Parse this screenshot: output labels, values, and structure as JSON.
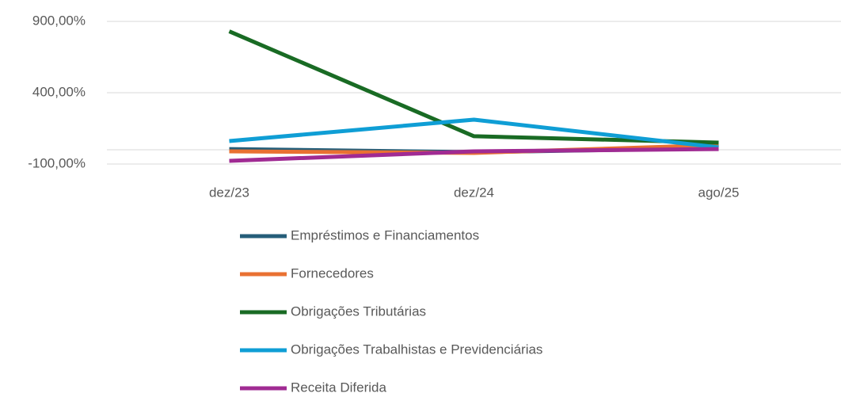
{
  "chart_data": {
    "type": "line",
    "categories": [
      "dez/23",
      "dez/24",
      "ago/25"
    ],
    "series": [
      {
        "name": "Empréstimos e Financiamentos",
        "color": "#255e79",
        "values": [
          5,
          -17,
          11
        ]
      },
      {
        "name": "Fornecedores",
        "color": "#e97132",
        "values": [
          -11,
          -22,
          33
        ]
      },
      {
        "name": "Obrigações Tributárias",
        "color": "#196b24",
        "values": [
          830,
          95,
          50
        ]
      },
      {
        "name": "Obrigações Trabalhistas e Previdenciárias",
        "color": "#0f9ed5",
        "values": [
          61,
          211,
          17
        ]
      },
      {
        "name": "Receita Diferida",
        "color": "#a02b93",
        "values": [
          -78,
          -11,
          5
        ]
      }
    ],
    "ylim": [
      -100,
      900
    ],
    "yticks": [
      {
        "value": -100,
        "label": "-100,00%"
      },
      {
        "value": 400,
        "label": "400,00%"
      },
      {
        "value": 900,
        "label": "900,00%"
      }
    ],
    "grid": true,
    "legend": "bottom"
  }
}
